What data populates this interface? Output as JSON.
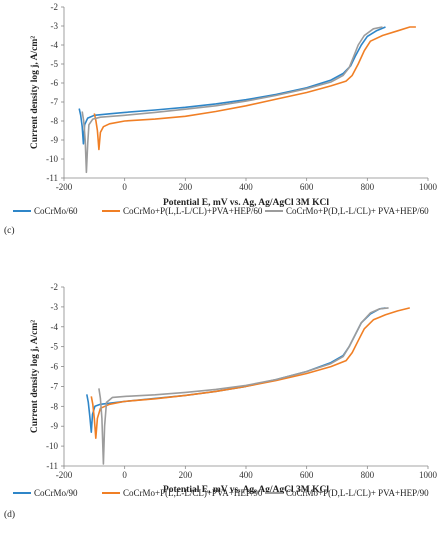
{
  "chart_data": [
    {
      "type": "line",
      "panel_label": "(c)",
      "xlabel": "Potential E, mV vs. Ag, Ag/AgCl 3M KCl",
      "ylabel": "Current density log j, A/cm²",
      "xlim": [
        -200,
        1000
      ],
      "ylim": [
        -11,
        -2
      ],
      "xticks": [
        -200,
        0,
        200,
        400,
        600,
        800,
        1000
      ],
      "yticks": [
        -11,
        -10,
        -9,
        -8,
        -7,
        -6,
        -5,
        -4,
        -3,
        -2
      ],
      "grid": false,
      "legend_position": "bottom",
      "series": [
        {
          "name": "CoCrMo/60",
          "color": "#2f86c8",
          "cathodic": [
            [
              -150,
              -7.35
            ],
            [
              -145,
              -7.7
            ],
            [
              -140,
              -8.3
            ],
            [
              -136,
              -9.2
            ]
          ],
          "anodic": [
            [
              -136,
              -9.2
            ],
            [
              -132,
              -8.2
            ],
            [
              -122,
              -7.85
            ],
            [
              -100,
              -7.7
            ],
            [
              -50,
              -7.62
            ],
            [
              0,
              -7.55
            ],
            [
              100,
              -7.42
            ],
            [
              200,
              -7.28
            ],
            [
              300,
              -7.1
            ],
            [
              400,
              -6.88
            ],
            [
              500,
              -6.6
            ],
            [
              600,
              -6.25
            ],
            [
              680,
              -5.85
            ],
            [
              720,
              -5.5
            ],
            [
              745,
              -5.1
            ],
            [
              760,
              -4.6
            ],
            [
              780,
              -4.0
            ],
            [
              800,
              -3.55
            ],
            [
              830,
              -3.25
            ],
            [
              860,
              -3.05
            ]
          ]
        },
        {
          "name": "CoCrMo+P(L,L-L/CL)+PVA+HEP/60",
          "color": "#f07f25",
          "cathodic": [
            [
              -100,
              -7.6
            ],
            [
              -95,
              -7.95
            ],
            [
              -90,
              -8.5
            ],
            [
              -85,
              -9.5
            ]
          ],
          "anodic": [
            [
              -85,
              -9.5
            ],
            [
              -80,
              -8.6
            ],
            [
              -70,
              -8.3
            ],
            [
              -50,
              -8.15
            ],
            [
              0,
              -8.0
            ],
            [
              100,
              -7.9
            ],
            [
              200,
              -7.75
            ],
            [
              300,
              -7.5
            ],
            [
              400,
              -7.2
            ],
            [
              500,
              -6.85
            ],
            [
              600,
              -6.5
            ],
            [
              680,
              -6.15
            ],
            [
              730,
              -5.9
            ],
            [
              750,
              -5.6
            ],
            [
              770,
              -5.0
            ],
            [
              790,
              -4.3
            ],
            [
              810,
              -3.8
            ],
            [
              850,
              -3.5
            ],
            [
              900,
              -3.25
            ],
            [
              940,
              -3.05
            ],
            [
              960,
              -3.05
            ]
          ]
        },
        {
          "name": "CoCrMo+P(D,L-L/CL)+ PVA+HEP/60",
          "color": "#9c9c9c",
          "cathodic": [
            [
              -140,
              -7.5
            ],
            [
              -135,
              -8.0
            ],
            [
              -130,
              -9.0
            ],
            [
              -126,
              -10.7
            ]
          ],
          "anodic": [
            [
              -126,
              -10.7
            ],
            [
              -122,
              -9.2
            ],
            [
              -118,
              -8.2
            ],
            [
              -105,
              -7.9
            ],
            [
              -80,
              -7.8
            ],
            [
              0,
              -7.7
            ],
            [
              100,
              -7.55
            ],
            [
              200,
              -7.38
            ],
            [
              300,
              -7.2
            ],
            [
              400,
              -6.95
            ],
            [
              500,
              -6.65
            ],
            [
              600,
              -6.3
            ],
            [
              680,
              -5.95
            ],
            [
              720,
              -5.6
            ],
            [
              740,
              -5.2
            ],
            [
              755,
              -4.6
            ],
            [
              770,
              -4.0
            ],
            [
              790,
              -3.5
            ],
            [
              820,
              -3.15
            ],
            [
              850,
              -3.05
            ]
          ]
        }
      ]
    },
    {
      "type": "line",
      "panel_label": "(d)",
      "xlabel": "Potential E, mV vs. Ag, Ag/AgCl 3M KCl",
      "ylabel": "Current density log j, A/cm²",
      "xlim": [
        -200,
        1000
      ],
      "ylim": [
        -11,
        -2
      ],
      "xticks": [
        -200,
        0,
        200,
        400,
        600,
        800,
        1000
      ],
      "yticks": [
        -11,
        -10,
        -9,
        -8,
        -7,
        -6,
        -5,
        -4,
        -3,
        -2
      ],
      "grid": false,
      "legend_position": "bottom",
      "series": [
        {
          "name": "CoCrMo/90",
          "color": "#2f86c8",
          "cathodic": [
            [
              -125,
              -7.4
            ],
            [
              -120,
              -7.8
            ],
            [
              -115,
              -8.5
            ],
            [
              -110,
              -9.3
            ]
          ],
          "anodic": [
            [
              -110,
              -9.3
            ],
            [
              -106,
              -8.4
            ],
            [
              -98,
              -8.0
            ],
            [
              -80,
              -7.9
            ],
            [
              0,
              -7.75
            ],
            [
              100,
              -7.6
            ],
            [
              200,
              -7.45
            ],
            [
              300,
              -7.25
            ],
            [
              400,
              -7.0
            ],
            [
              500,
              -6.65
            ],
            [
              600,
              -6.25
            ],
            [
              680,
              -5.8
            ],
            [
              720,
              -5.45
            ],
            [
              740,
              -5.0
            ],
            [
              760,
              -4.4
            ],
            [
              780,
              -3.8
            ],
            [
              810,
              -3.35
            ],
            [
              840,
              -3.1
            ],
            [
              860,
              -3.05
            ]
          ]
        },
        {
          "name": "CoCrMo+P(L,L-L/CL)+PVA+HEP/90",
          "color": "#f07f25",
          "cathodic": [
            [
              -110,
              -7.5
            ],
            [
              -105,
              -7.9
            ],
            [
              -100,
              -8.6
            ],
            [
              -95,
              -9.6
            ]
          ],
          "anodic": [
            [
              -95,
              -9.6
            ],
            [
              -90,
              -8.6
            ],
            [
              -80,
              -8.1
            ],
            [
              -50,
              -7.9
            ],
            [
              0,
              -7.75
            ],
            [
              100,
              -7.62
            ],
            [
              200,
              -7.45
            ],
            [
              300,
              -7.25
            ],
            [
              400,
              -7.0
            ],
            [
              500,
              -6.7
            ],
            [
              600,
              -6.35
            ],
            [
              680,
              -6.0
            ],
            [
              730,
              -5.7
            ],
            [
              750,
              -5.3
            ],
            [
              770,
              -4.7
            ],
            [
              790,
              -4.1
            ],
            [
              820,
              -3.65
            ],
            [
              860,
              -3.4
            ],
            [
              900,
              -3.2
            ],
            [
              940,
              -3.05
            ]
          ]
        },
        {
          "name": "CoCrMo+P(D,L-L/CL)+ PVA+HEP/90",
          "color": "#9c9c9c",
          "cathodic": [
            [
              -85,
              -7.1
            ],
            [
              -80,
              -7.6
            ],
            [
              -75,
              -8.6
            ],
            [
              -70,
              -10.9
            ]
          ],
          "anodic": [
            [
              -70,
              -10.9
            ],
            [
              -66,
              -9.0
            ],
            [
              -60,
              -7.8
            ],
            [
              -40,
              -7.55
            ],
            [
              0,
              -7.5
            ],
            [
              100,
              -7.42
            ],
            [
              200,
              -7.3
            ],
            [
              300,
              -7.15
            ],
            [
              400,
              -6.95
            ],
            [
              500,
              -6.65
            ],
            [
              600,
              -6.25
            ],
            [
              680,
              -5.85
            ],
            [
              720,
              -5.5
            ],
            [
              740,
              -5.0
            ],
            [
              760,
              -4.4
            ],
            [
              780,
              -3.8
            ],
            [
              810,
              -3.3
            ],
            [
              840,
              -3.1
            ],
            [
              870,
              -3.05
            ]
          ]
        }
      ]
    }
  ]
}
